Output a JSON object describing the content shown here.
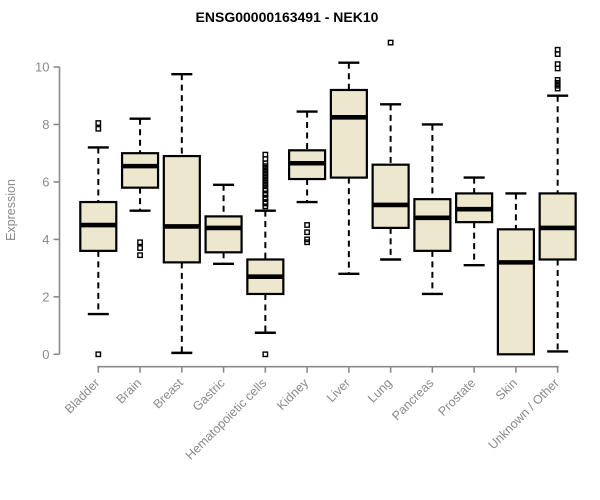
{
  "chart_data": {
    "type": "boxplot",
    "title": "ENSG00000163491 - NEK10",
    "xlabel": "",
    "ylabel": "Expression",
    "ylim": [
      0,
      11
    ],
    "yticks": [
      0,
      2,
      4,
      6,
      8,
      10
    ],
    "grid": false,
    "legend": "none",
    "categories": [
      "Bladder",
      "Brain",
      "Breast",
      "Gastric",
      "Hematopoietic cells",
      "Kidney",
      "Liver",
      "Lung",
      "Pancreas",
      "Prostate",
      "Skin",
      "Unknown / Other"
    ],
    "boxes": [
      {
        "category": "Bladder",
        "whisker_low": 1.4,
        "q1": 3.6,
        "median": 4.5,
        "q3": 5.3,
        "whisker_high": 7.2,
        "outliers": [
          8.05,
          7.85,
          0
        ]
      },
      {
        "category": "Brain",
        "whisker_low": 5.0,
        "q1": 5.8,
        "median": 6.55,
        "q3": 7.0,
        "whisker_high": 8.2,
        "outliers": [
          3.9,
          3.7,
          3.45
        ]
      },
      {
        "category": "Breast",
        "whisker_low": 0.05,
        "q1": 3.2,
        "median": 4.45,
        "q3": 6.9,
        "whisker_high": 9.75,
        "outliers": []
      },
      {
        "category": "Gastric",
        "whisker_low": 3.15,
        "q1": 3.55,
        "median": 4.4,
        "q3": 4.8,
        "whisker_high": 5.9,
        "outliers": []
      },
      {
        "category": "Hematopoietic cells",
        "whisker_low": 0.75,
        "q1": 2.1,
        "median": 2.7,
        "q3": 3.3,
        "whisker_high": 5.0,
        "outliers": [
          6.95,
          6.8,
          6.65,
          6.55,
          6.45,
          6.35,
          6.25,
          6.15,
          6.05,
          5.95,
          5.85,
          5.75,
          5.7,
          5.6,
          5.55,
          5.45,
          5.4,
          5.3,
          5.25,
          5.15,
          0
        ]
      },
      {
        "category": "Kidney",
        "whisker_low": 5.3,
        "q1": 6.1,
        "median": 6.65,
        "q3": 7.1,
        "whisker_high": 8.45,
        "outliers": [
          4.5,
          4.25,
          4.0,
          3.9
        ]
      },
      {
        "category": "Liver",
        "whisker_low": 2.8,
        "q1": 6.15,
        "median": 8.25,
        "q3": 9.2,
        "whisker_high": 10.15,
        "outliers": []
      },
      {
        "category": "Lung",
        "whisker_low": 3.3,
        "q1": 4.4,
        "median": 5.2,
        "q3": 6.6,
        "whisker_high": 8.7,
        "outliers": [
          10.85
        ]
      },
      {
        "category": "Pancreas",
        "whisker_low": 2.1,
        "q1": 3.6,
        "median": 4.75,
        "q3": 5.4,
        "whisker_high": 8.0,
        "outliers": []
      },
      {
        "category": "Prostate",
        "whisker_low": 3.1,
        "q1": 4.6,
        "median": 5.05,
        "q3": 5.6,
        "whisker_high": 6.15,
        "outliers": []
      },
      {
        "category": "Skin",
        "whisker_low": null,
        "q1": 0,
        "median": 3.2,
        "q3": 4.35,
        "whisker_high": 5.6,
        "outliers": []
      },
      {
        "category": "Unknown / Other",
        "whisker_low": 0.1,
        "q1": 3.3,
        "median": 4.4,
        "q3": 5.6,
        "whisker_high": 9.0,
        "outliers": [
          10.6,
          10.45,
          10.1,
          9.95,
          9.55,
          9.45,
          9.35,
          9.25
        ]
      }
    ]
  },
  "colors": {
    "box_fill": "#EDE7CD",
    "box_stroke": "#000000",
    "median": "#000000",
    "axis": "#8a8a8a",
    "tick_label": "#8a8a8a",
    "title": "#000000",
    "background": "#ffffff"
  }
}
